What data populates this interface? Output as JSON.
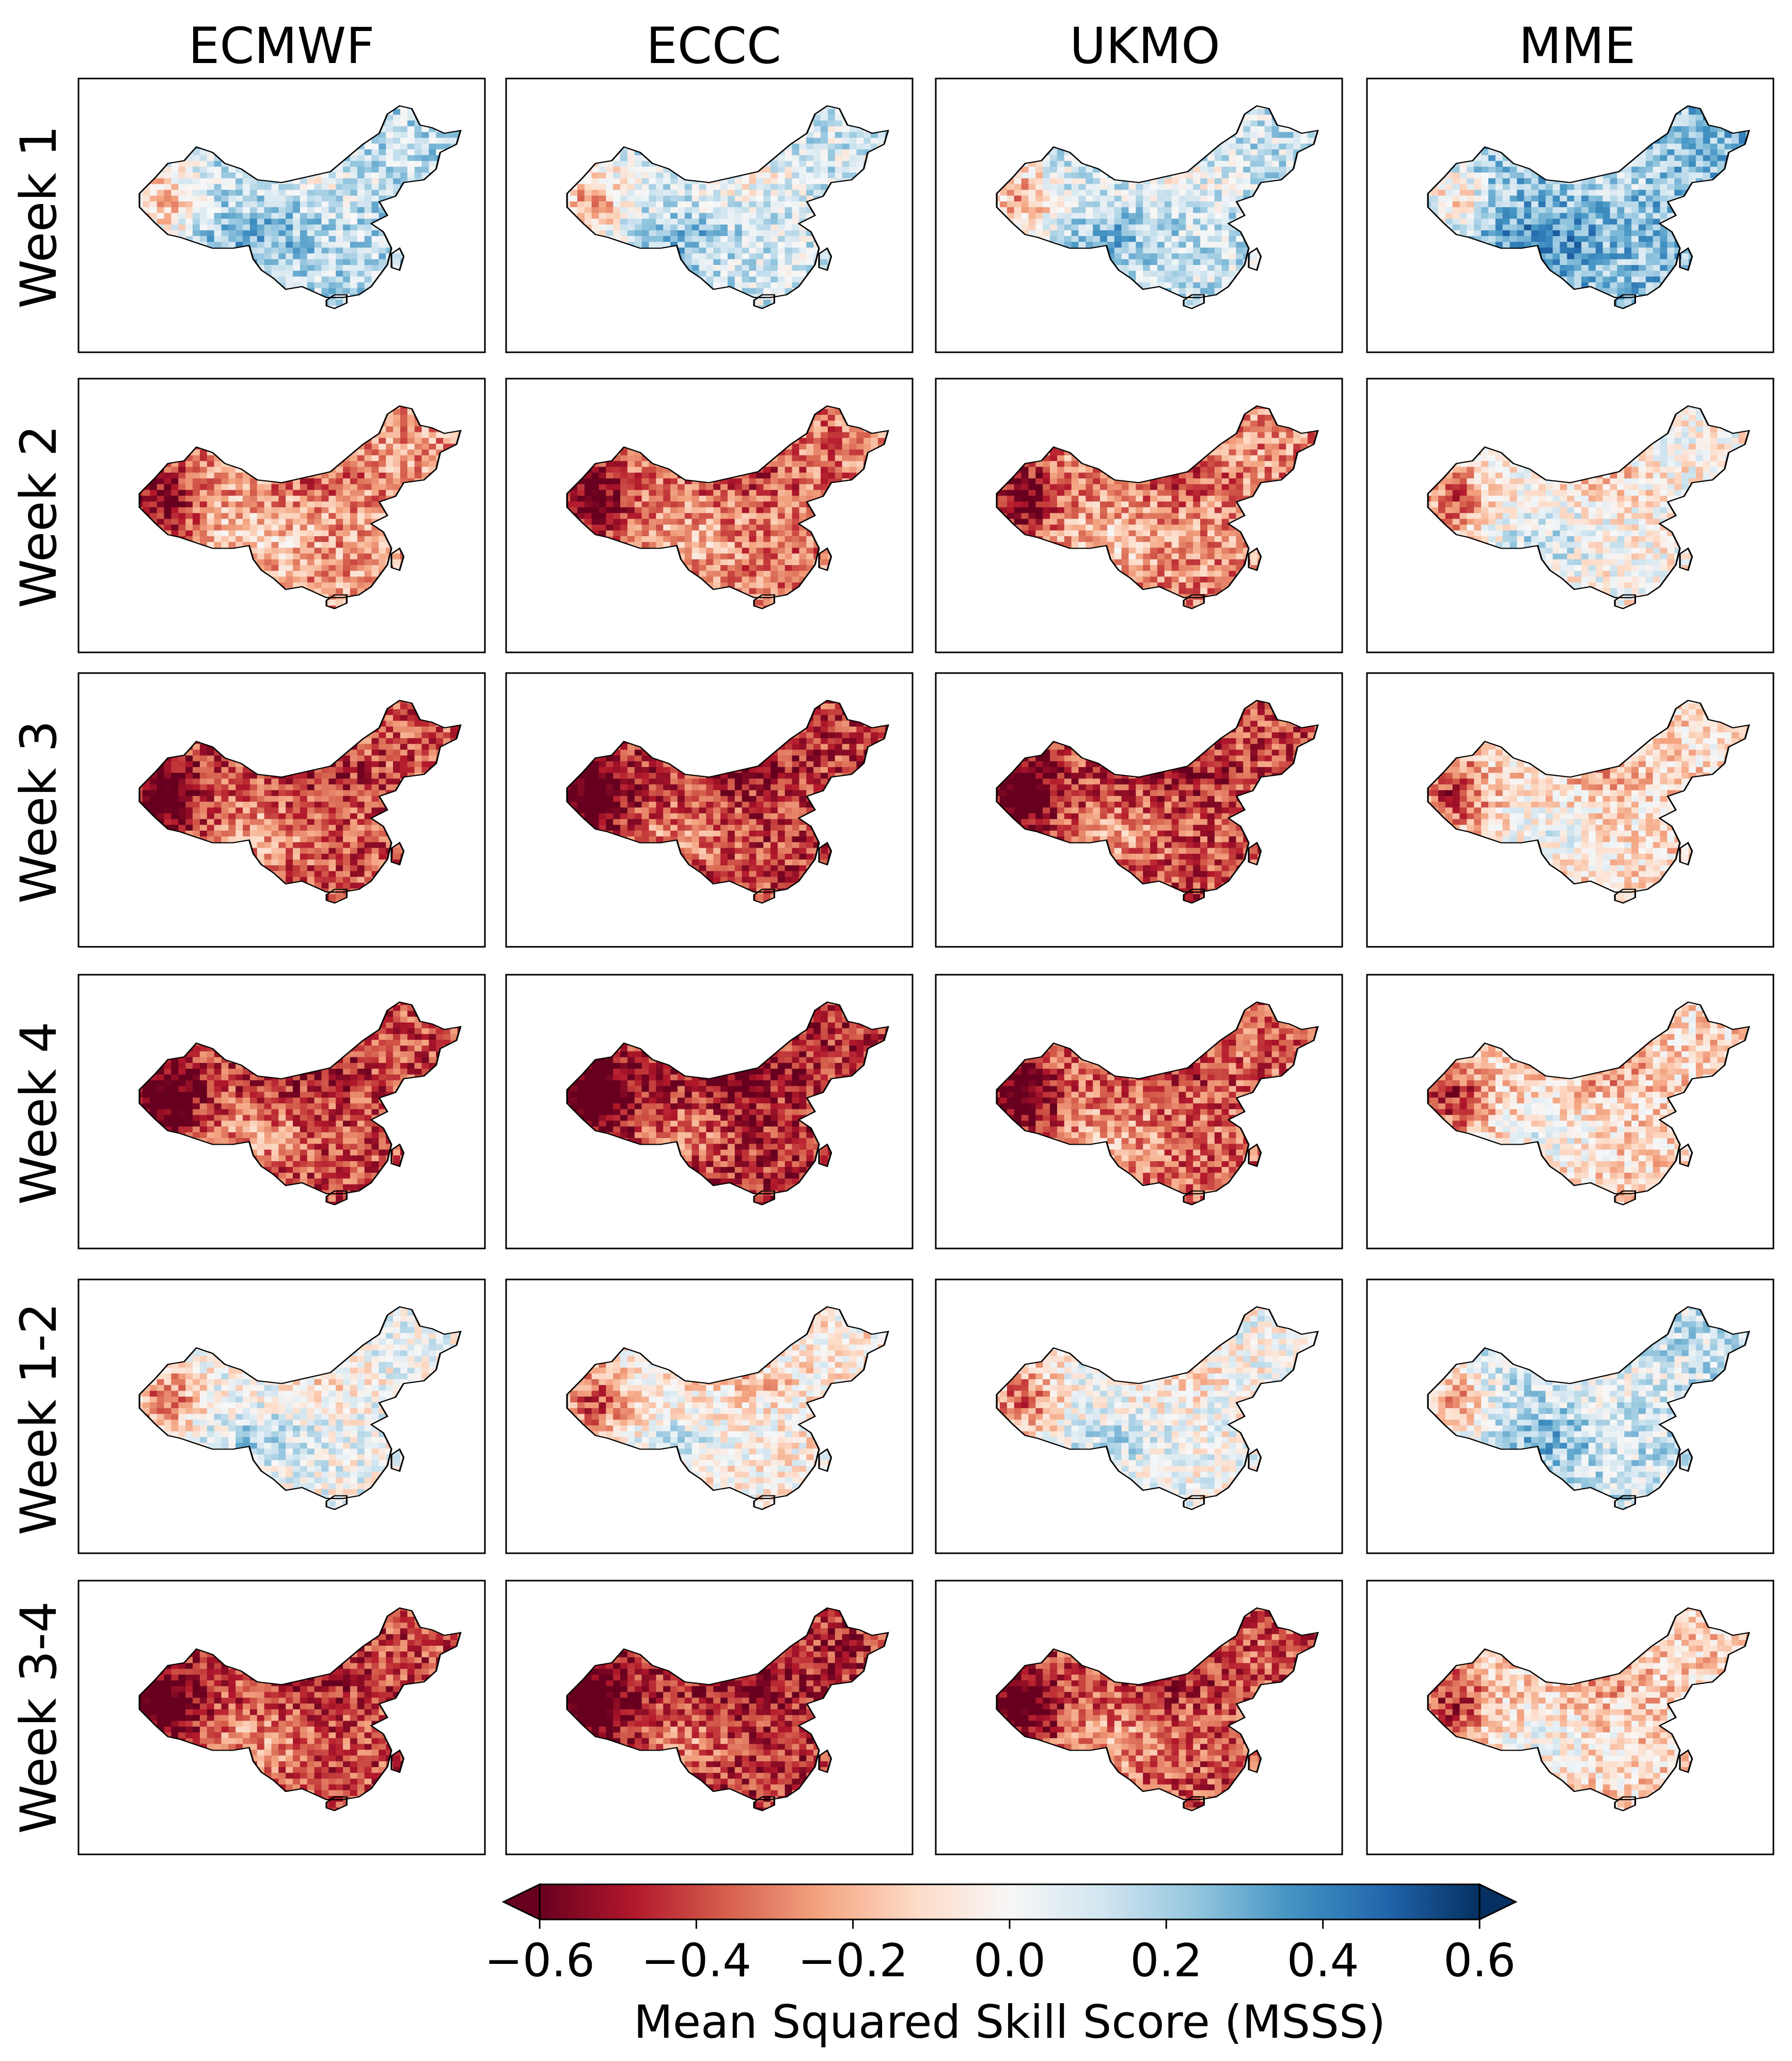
{
  "chart_data": {
    "type": "heatmap",
    "description": "Gridded maps of China showing MSSS for each model and lead time",
    "columns": [
      "ECMWF",
      "ECCC",
      "UKMO",
      "MME"
    ],
    "rows": [
      "Week 1",
      "Week 2",
      "Week 3",
      "Week 4",
      "Week 1-2",
      "Week 3-4"
    ],
    "colorbar": {
      "label": "Mean Squared Skill Score (MSSS)",
      "min": -0.6,
      "max": 0.6,
      "ticks": [
        -0.6,
        -0.4,
        -0.2,
        0.0,
        0.2,
        0.4,
        0.6
      ],
      "tick_labels": [
        "−0.6",
        "−0.4",
        "−0.2",
        "0.0",
        "0.2",
        "0.4",
        "0.6"
      ],
      "extend": "both",
      "colormap": "RdBu",
      "colormap_stops": [
        "#67001f",
        "#b2182b",
        "#d6604d",
        "#f4a582",
        "#fddbc7",
        "#f7f7f7",
        "#d1e5f0",
        "#92c5de",
        "#4393c3",
        "#2166ac",
        "#053061"
      ]
    },
    "panel_mean_msss": [
      [
        0.15,
        0.1,
        0.12,
        0.25
      ],
      [
        -0.25,
        -0.32,
        -0.28,
        -0.02
      ],
      [
        -0.38,
        -0.42,
        -0.4,
        -0.1
      ],
      [
        -0.4,
        -0.45,
        -0.35,
        -0.12
      ],
      [
        0.02,
        -0.05,
        0.0,
        0.12
      ],
      [
        -0.4,
        -0.45,
        -0.38,
        -0.12
      ]
    ]
  }
}
